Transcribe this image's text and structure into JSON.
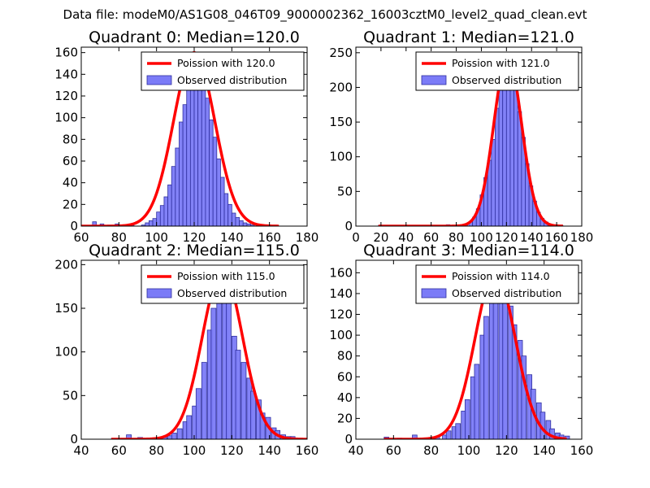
{
  "figure": {
    "suptitle": "Data file: modeM0/AS1G08_046T09_9000002362_16003cztM0_level2_quad_clean.evt"
  },
  "colors": {
    "bar_fill": "#7b7bf7",
    "bar_edge": "#3030a0",
    "curve": "#ff0000",
    "axis": "#000000",
    "legend_border": "#000000"
  },
  "chart_data": [
    {
      "type": "bar",
      "title": "Quadrant 0: Median=120.0",
      "legend": [
        "Poission with 120.0",
        "Observed distribution"
      ],
      "legend_position": "top-right",
      "xlim": [
        60,
        180
      ],
      "ylim": [
        0,
        165
      ],
      "xticks": [
        60,
        80,
        100,
        120,
        140,
        160,
        180
      ],
      "yticks": [
        0,
        20,
        40,
        60,
        80,
        100,
        120,
        140,
        160
      ],
      "xticklabels": [
        "60",
        "80",
        "100",
        "120",
        "140",
        "160",
        "180"
      ],
      "yticklabels": [
        "0",
        "20",
        "40",
        "60",
        "80",
        "100",
        "120",
        "140",
        "160"
      ],
      "bin_width": 2,
      "bins": [
        [
          66,
          4
        ],
        [
          70,
          2
        ],
        [
          74,
          1
        ],
        [
          78,
          2
        ],
        [
          84,
          1
        ],
        [
          86,
          1
        ],
        [
          92,
          1
        ],
        [
          94,
          3
        ],
        [
          96,
          5
        ],
        [
          98,
          7
        ],
        [
          100,
          13
        ],
        [
          102,
          19
        ],
        [
          104,
          27
        ],
        [
          106,
          38
        ],
        [
          108,
          55
        ],
        [
          110,
          72
        ],
        [
          112,
          96
        ],
        [
          114,
          112
        ],
        [
          116,
          130
        ],
        [
          118,
          143
        ],
        [
          120,
          150
        ],
        [
          122,
          140
        ],
        [
          124,
          133
        ],
        [
          126,
          118
        ],
        [
          128,
          98
        ],
        [
          130,
          82
        ],
        [
          132,
          62
        ],
        [
          134,
          45
        ],
        [
          136,
          30
        ],
        [
          138,
          20
        ],
        [
          140,
          12
        ],
        [
          142,
          8
        ],
        [
          144,
          5
        ],
        [
          146,
          3
        ],
        [
          148,
          2
        ],
        [
          150,
          1
        ]
      ],
      "poisson_mean": 120.0,
      "poisson_peak": 160,
      "poisson_sigma": 10.95,
      "curve_range": [
        60,
        165
      ]
    },
    {
      "type": "bar",
      "title": "Quadrant 1: Median=121.0",
      "legend": [
        "Poission with 121.0",
        "Observed distribution"
      ],
      "legend_position": "top-right",
      "xlim": [
        0,
        180
      ],
      "ylim": [
        0,
        258
      ],
      "xticks": [
        0,
        20,
        40,
        60,
        80,
        100,
        120,
        140,
        160,
        180
      ],
      "yticks": [
        0,
        50,
        100,
        150,
        200,
        250
      ],
      "xticklabels": [
        "0",
        "20",
        "40",
        "60",
        "80",
        "100",
        "120",
        "140",
        "160",
        "180"
      ],
      "yticklabels": [
        "0",
        "50",
        "100",
        "150",
        "200",
        "250"
      ],
      "bin_width": 3,
      "bins": [
        [
          18,
          1
        ],
        [
          72,
          2
        ],
        [
          86,
          3
        ],
        [
          90,
          6
        ],
        [
          93,
          13
        ],
        [
          96,
          25
        ],
        [
          99,
          45
        ],
        [
          102,
          70
        ],
        [
          105,
          95
        ],
        [
          108,
          125
        ],
        [
          111,
          170
        ],
        [
          114,
          210
        ],
        [
          117,
          238
        ],
        [
          120,
          248
        ],
        [
          123,
          230
        ],
        [
          126,
          200
        ],
        [
          129,
          165
        ],
        [
          132,
          128
        ],
        [
          135,
          90
        ],
        [
          138,
          58
        ],
        [
          141,
          36
        ],
        [
          144,
          20
        ],
        [
          147,
          11
        ],
        [
          150,
          6
        ],
        [
          153,
          3
        ],
        [
          156,
          2
        ],
        [
          162,
          1
        ]
      ],
      "poisson_mean": 121.0,
      "poisson_peak": 245,
      "poisson_sigma": 11.0,
      "curve_range": [
        18,
        165
      ]
    },
    {
      "type": "bar",
      "title": "Quadrant 2: Median=115.0",
      "legend": [
        "Poission with 115.0",
        "Observed distribution"
      ],
      "legend_position": "top-right",
      "xlim": [
        40,
        160
      ],
      "ylim": [
        0,
        205
      ],
      "xticks": [
        40,
        60,
        80,
        100,
        120,
        140,
        160
      ],
      "yticks": [
        0,
        50,
        100,
        150,
        200
      ],
      "xticklabels": [
        "40",
        "60",
        "80",
        "100",
        "120",
        "140",
        "160"
      ],
      "yticklabels": [
        "0",
        "50",
        "100",
        "150",
        "200"
      ],
      "bin_width": 2.6,
      "bins": [
        [
          56,
          1
        ],
        [
          64,
          5
        ],
        [
          70,
          2
        ],
        [
          77,
          1
        ],
        [
          83,
          2
        ],
        [
          86,
          4
        ],
        [
          88,
          7
        ],
        [
          91,
          12
        ],
        [
          94,
          20
        ],
        [
          96,
          27
        ],
        [
          99,
          38
        ],
        [
          101,
          58
        ],
        [
          104,
          88
        ],
        [
          107,
          125
        ],
        [
          109,
          150
        ],
        [
          112,
          190
        ],
        [
          115,
          175
        ],
        [
          117,
          158
        ],
        [
          120,
          118
        ],
        [
          122,
          102
        ],
        [
          125,
          88
        ],
        [
          128,
          70
        ],
        [
          130,
          55
        ],
        [
          133,
          45
        ],
        [
          135,
          30
        ],
        [
          138,
          25
        ],
        [
          141,
          13
        ],
        [
          143,
          10
        ],
        [
          146,
          5
        ],
        [
          149,
          3
        ],
        [
          151,
          3
        ],
        [
          154,
          1
        ],
        [
          157,
          1
        ]
      ],
      "poisson_mean": 115.0,
      "poisson_peak": 193,
      "poisson_sigma": 10.72,
      "curve_range": [
        56,
        160
      ]
    },
    {
      "type": "bar",
      "title": "Quadrant 3: Median=114.0",
      "legend": [
        "Poission with 114.0",
        "Observed distribution"
      ],
      "legend_position": "top-right",
      "xlim": [
        40,
        160
      ],
      "ylim": [
        0,
        172
      ],
      "xticks": [
        40,
        60,
        80,
        100,
        120,
        140,
        160
      ],
      "yticks": [
        0,
        20,
        40,
        60,
        80,
        100,
        120,
        140,
        160
      ],
      "xticklabels": [
        "40",
        "60",
        "80",
        "100",
        "120",
        "140",
        "160"
      ],
      "yticklabels": [
        "0",
        "20",
        "40",
        "60",
        "80",
        "100",
        "120",
        "140",
        "160"
      ],
      "bin_width": 2.5,
      "bins": [
        [
          55,
          2
        ],
        [
          62,
          1
        ],
        [
          70,
          4
        ],
        [
          82,
          2
        ],
        [
          86,
          4
        ],
        [
          88,
          8
        ],
        [
          91,
          12
        ],
        [
          93,
          15
        ],
        [
          96,
          27
        ],
        [
          98,
          38
        ],
        [
          101,
          60
        ],
        [
          103,
          72
        ],
        [
          106,
          100
        ],
        [
          108,
          118
        ],
        [
          111,
          145
        ],
        [
          113,
          160
        ],
        [
          116,
          150
        ],
        [
          118,
          140
        ],
        [
          121,
          128
        ],
        [
          123,
          110
        ],
        [
          126,
          95
        ],
        [
          128,
          80
        ],
        [
          131,
          62
        ],
        [
          133,
          48
        ],
        [
          136,
          35
        ],
        [
          138,
          26
        ],
        [
          141,
          18
        ],
        [
          143,
          10
        ],
        [
          146,
          6
        ],
        [
          148,
          4
        ],
        [
          151,
          3
        ]
      ],
      "poisson_mean": 114.0,
      "poisson_peak": 160,
      "poisson_sigma": 10.68,
      "curve_range": [
        55,
        152
      ]
    }
  ]
}
